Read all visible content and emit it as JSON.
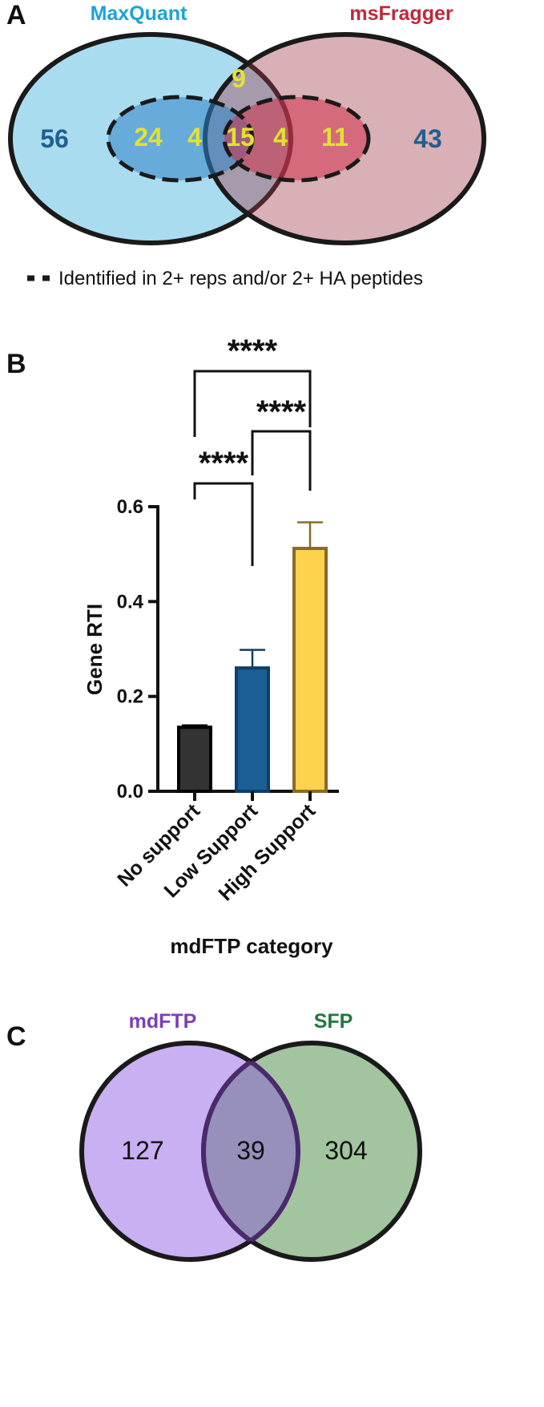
{
  "panels": {
    "a": "A",
    "b": "B",
    "c": "C"
  },
  "venn_a": {
    "left_label": "MaxQuant",
    "right_label": "msFragger",
    "left_color": "#1aa3d9",
    "right_color": "#c0283a",
    "counts": {
      "maxquant_only": "56",
      "msfragger_only": "43",
      "mq_high_only": "24",
      "mq_high_overlap": "4",
      "shared_low": "9",
      "shared_high": "15",
      "ms_high_overlap": "4",
      "ms_high_only": "11"
    },
    "legend": "Identified in 2+ reps and/or 2+ HA peptides"
  },
  "chart_data": {
    "type": "bar",
    "categories": [
      "No support",
      "Low Support",
      "High Support"
    ],
    "values": [
      0.135,
      0.26,
      0.512
    ],
    "errors": [
      0.004,
      0.038,
      0.055
    ],
    "colors": [
      "#333333",
      "#1b5e93",
      "#fdd24c"
    ],
    "edge_colors": [
      "#000000",
      "#0f3e66",
      "#8a6a2a"
    ],
    "ylabel": "Gene RTI",
    "xlabel": "mdFTP category",
    "ylim": [
      0,
      0.6
    ],
    "yticks": [
      0.0,
      0.2,
      0.4,
      0.6
    ],
    "ytick_labels": [
      "0.0",
      "0.2",
      "0.4",
      "0.6"
    ],
    "significance": [
      {
        "from": "No support",
        "to": "High Support",
        "label": "****"
      },
      {
        "from": "Low Support",
        "to": "High Support",
        "label": "****"
      },
      {
        "from": "No support",
        "to": "Low Support",
        "label": "****"
      }
    ]
  },
  "venn_c": {
    "left_label": "mdFTP",
    "right_label": "SFP",
    "left_color": "#7b3fb5",
    "right_color": "#1e7a3c",
    "left_only": "127",
    "overlap": "39",
    "right_only": "304"
  }
}
